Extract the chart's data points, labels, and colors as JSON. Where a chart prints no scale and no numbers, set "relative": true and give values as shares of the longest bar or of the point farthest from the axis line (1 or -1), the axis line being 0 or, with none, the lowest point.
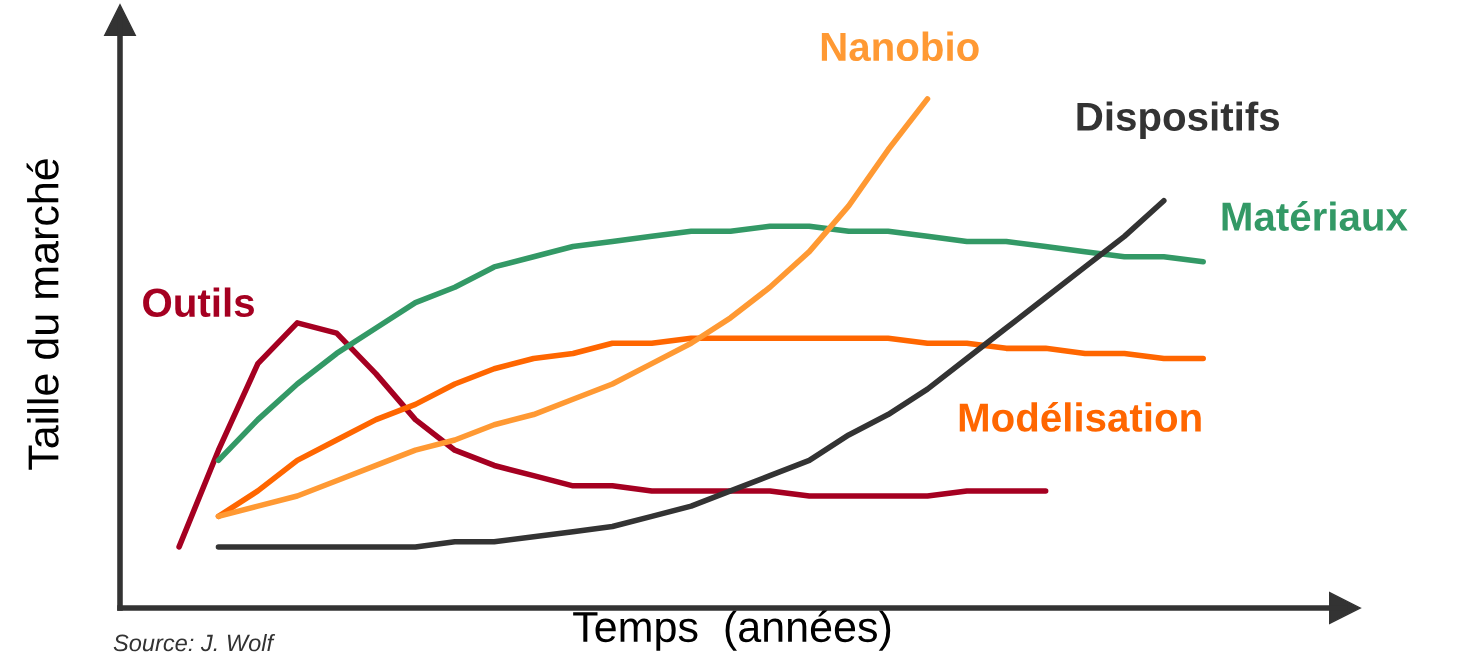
{
  "chart_data": {
    "type": "line",
    "relative": true,
    "xlabel": "Temps  (années)",
    "ylabel": "Taille du marché",
    "annotations": [
      "Source: J. Wolf"
    ],
    "categories": [
      null,
      null,
      null,
      null,
      null,
      null,
      null,
      null,
      null,
      null,
      null,
      null,
      null,
      null,
      null,
      null,
      null,
      null,
      null,
      null,
      null,
      null,
      null,
      null,
      null,
      null,
      null
    ],
    "series": [
      {
        "name": "Outils",
        "color": "#a50021",
        "values": [
          0.12,
          0.31,
          0.48,
          0.56,
          0.54,
          0.46,
          0.37,
          0.31,
          0.28,
          0.26,
          0.24,
          0.24,
          0.23,
          0.23,
          0.23,
          0.23,
          0.22,
          0.22,
          0.22,
          0.22,
          0.23,
          0.23,
          0.23,
          null,
          null,
          null,
          null
        ]
      },
      {
        "name": "Matériaux",
        "color": "#339966",
        "values": [
          null,
          0.29,
          0.37,
          0.44,
          0.5,
          0.55,
          0.6,
          0.63,
          0.67,
          0.69,
          0.71,
          0.72,
          0.73,
          0.74,
          0.74,
          0.75,
          0.75,
          0.74,
          0.74,
          0.73,
          0.72,
          0.72,
          0.71,
          0.7,
          0.69,
          0.69,
          0.68
        ]
      },
      {
        "name": "Modélisation",
        "color": "#ff6600",
        "values": [
          null,
          0.18,
          0.23,
          0.29,
          0.33,
          0.37,
          0.4,
          0.44,
          0.47,
          0.49,
          0.5,
          0.52,
          0.52,
          0.53,
          0.53,
          0.53,
          0.53,
          0.53,
          0.53,
          0.52,
          0.52,
          0.51,
          0.51,
          0.5,
          0.5,
          0.49,
          0.49
        ]
      },
      {
        "name": "Nanobio",
        "color": "#ff9933",
        "values": [
          null,
          0.18,
          0.2,
          0.22,
          0.25,
          0.28,
          0.31,
          0.33,
          0.36,
          0.38,
          0.41,
          0.44,
          0.48,
          0.52,
          0.57,
          0.63,
          0.7,
          0.79,
          0.9,
          1,
          null,
          null,
          null,
          null,
          null,
          null,
          null
        ]
      },
      {
        "name": "Dispositifs",
        "color": "#333333",
        "values": [
          null,
          0.12,
          0.12,
          0.12,
          0.12,
          0.12,
          0.12,
          0.13,
          0.13,
          0.14,
          0.15,
          0.16,
          0.18,
          0.2,
          0.23,
          0.26,
          0.29,
          0.34,
          0.38,
          0.43,
          0.49,
          0.55,
          0.61,
          0.67,
          0.73,
          0.8,
          null
        ]
      }
    ],
    "marker": "none",
    "line_style": "solid"
  }
}
